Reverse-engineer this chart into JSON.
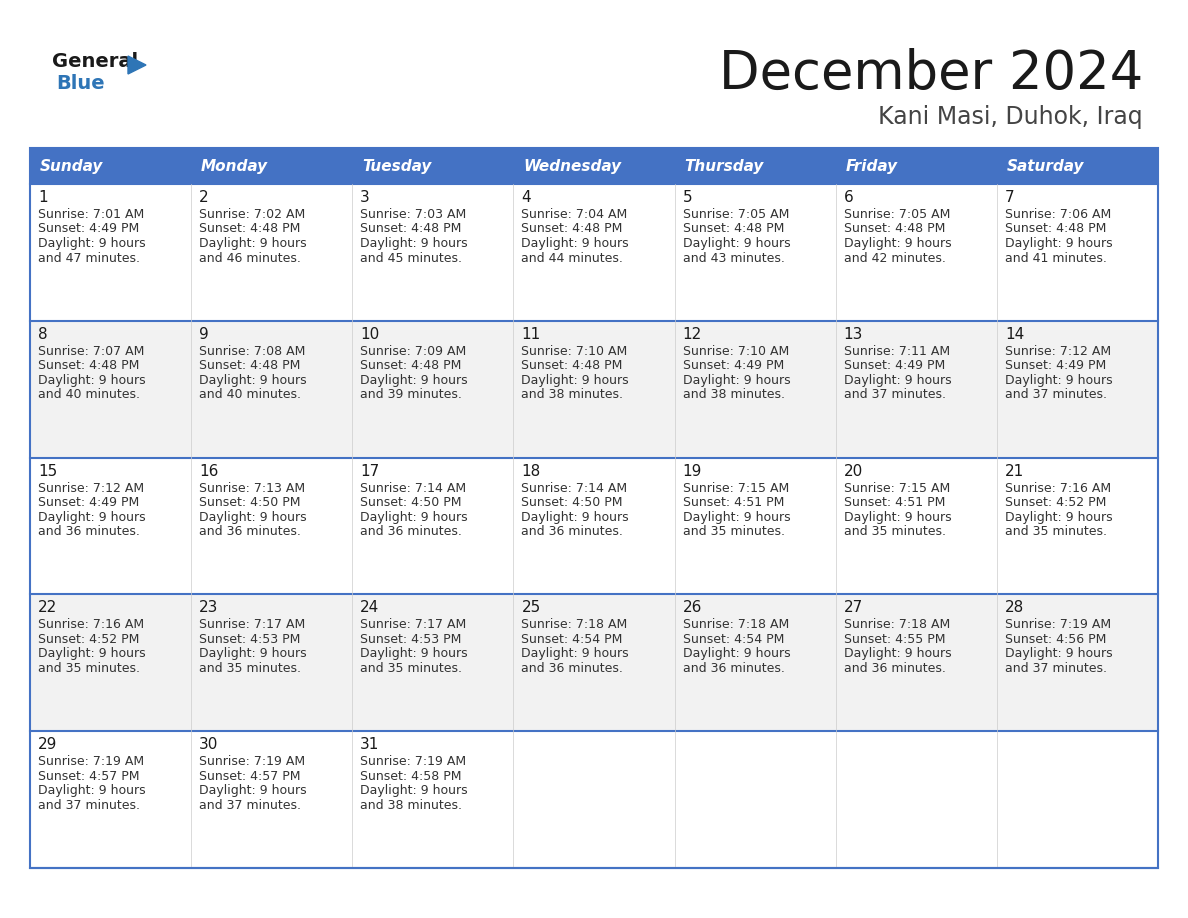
{
  "title": "December 2024",
  "subtitle": "Kani Masi, Duhok, Iraq",
  "header_bg": "#4472C4",
  "header_text_color": "#FFFFFF",
  "day_names": [
    "Sunday",
    "Monday",
    "Tuesday",
    "Wednesday",
    "Thursday",
    "Friday",
    "Saturday"
  ],
  "cell_bg_even": "#FFFFFF",
  "cell_bg_odd": "#F2F2F2",
  "border_color": "#4472C4",
  "row_line_color": "#4472C4",
  "days": [
    {
      "day": 1,
      "col": 0,
      "row": 0,
      "sunrise": "7:01 AM",
      "sunset": "4:49 PM",
      "daylight": "9 hours",
      "daylight2": "and 47 minutes."
    },
    {
      "day": 2,
      "col": 1,
      "row": 0,
      "sunrise": "7:02 AM",
      "sunset": "4:48 PM",
      "daylight": "9 hours",
      "daylight2": "and 46 minutes."
    },
    {
      "day": 3,
      "col": 2,
      "row": 0,
      "sunrise": "7:03 AM",
      "sunset": "4:48 PM",
      "daylight": "9 hours",
      "daylight2": "and 45 minutes."
    },
    {
      "day": 4,
      "col": 3,
      "row": 0,
      "sunrise": "7:04 AM",
      "sunset": "4:48 PM",
      "daylight": "9 hours",
      "daylight2": "and 44 minutes."
    },
    {
      "day": 5,
      "col": 4,
      "row": 0,
      "sunrise": "7:05 AM",
      "sunset": "4:48 PM",
      "daylight": "9 hours",
      "daylight2": "and 43 minutes."
    },
    {
      "day": 6,
      "col": 5,
      "row": 0,
      "sunrise": "7:05 AM",
      "sunset": "4:48 PM",
      "daylight": "9 hours",
      "daylight2": "and 42 minutes."
    },
    {
      "day": 7,
      "col": 6,
      "row": 0,
      "sunrise": "7:06 AM",
      "sunset": "4:48 PM",
      "daylight": "9 hours",
      "daylight2": "and 41 minutes."
    },
    {
      "day": 8,
      "col": 0,
      "row": 1,
      "sunrise": "7:07 AM",
      "sunset": "4:48 PM",
      "daylight": "9 hours",
      "daylight2": "and 40 minutes."
    },
    {
      "day": 9,
      "col": 1,
      "row": 1,
      "sunrise": "7:08 AM",
      "sunset": "4:48 PM",
      "daylight": "9 hours",
      "daylight2": "and 40 minutes."
    },
    {
      "day": 10,
      "col": 2,
      "row": 1,
      "sunrise": "7:09 AM",
      "sunset": "4:48 PM",
      "daylight": "9 hours",
      "daylight2": "and 39 minutes."
    },
    {
      "day": 11,
      "col": 3,
      "row": 1,
      "sunrise": "7:10 AM",
      "sunset": "4:48 PM",
      "daylight": "9 hours",
      "daylight2": "and 38 minutes."
    },
    {
      "day": 12,
      "col": 4,
      "row": 1,
      "sunrise": "7:10 AM",
      "sunset": "4:49 PM",
      "daylight": "9 hours",
      "daylight2": "and 38 minutes."
    },
    {
      "day": 13,
      "col": 5,
      "row": 1,
      "sunrise": "7:11 AM",
      "sunset": "4:49 PM",
      "daylight": "9 hours",
      "daylight2": "and 37 minutes."
    },
    {
      "day": 14,
      "col": 6,
      "row": 1,
      "sunrise": "7:12 AM",
      "sunset": "4:49 PM",
      "daylight": "9 hours",
      "daylight2": "and 37 minutes."
    },
    {
      "day": 15,
      "col": 0,
      "row": 2,
      "sunrise": "7:12 AM",
      "sunset": "4:49 PM",
      "daylight": "9 hours",
      "daylight2": "and 36 minutes."
    },
    {
      "day": 16,
      "col": 1,
      "row": 2,
      "sunrise": "7:13 AM",
      "sunset": "4:50 PM",
      "daylight": "9 hours",
      "daylight2": "and 36 minutes."
    },
    {
      "day": 17,
      "col": 2,
      "row": 2,
      "sunrise": "7:14 AM",
      "sunset": "4:50 PM",
      "daylight": "9 hours",
      "daylight2": "and 36 minutes."
    },
    {
      "day": 18,
      "col": 3,
      "row": 2,
      "sunrise": "7:14 AM",
      "sunset": "4:50 PM",
      "daylight": "9 hours",
      "daylight2": "and 36 minutes."
    },
    {
      "day": 19,
      "col": 4,
      "row": 2,
      "sunrise": "7:15 AM",
      "sunset": "4:51 PM",
      "daylight": "9 hours",
      "daylight2": "and 35 minutes."
    },
    {
      "day": 20,
      "col": 5,
      "row": 2,
      "sunrise": "7:15 AM",
      "sunset": "4:51 PM",
      "daylight": "9 hours",
      "daylight2": "and 35 minutes."
    },
    {
      "day": 21,
      "col": 6,
      "row": 2,
      "sunrise": "7:16 AM",
      "sunset": "4:52 PM",
      "daylight": "9 hours",
      "daylight2": "and 35 minutes."
    },
    {
      "day": 22,
      "col": 0,
      "row": 3,
      "sunrise": "7:16 AM",
      "sunset": "4:52 PM",
      "daylight": "9 hours",
      "daylight2": "and 35 minutes."
    },
    {
      "day": 23,
      "col": 1,
      "row": 3,
      "sunrise": "7:17 AM",
      "sunset": "4:53 PM",
      "daylight": "9 hours",
      "daylight2": "and 35 minutes."
    },
    {
      "day": 24,
      "col": 2,
      "row": 3,
      "sunrise": "7:17 AM",
      "sunset": "4:53 PM",
      "daylight": "9 hours",
      "daylight2": "and 35 minutes."
    },
    {
      "day": 25,
      "col": 3,
      "row": 3,
      "sunrise": "7:18 AM",
      "sunset": "4:54 PM",
      "daylight": "9 hours",
      "daylight2": "and 36 minutes."
    },
    {
      "day": 26,
      "col": 4,
      "row": 3,
      "sunrise": "7:18 AM",
      "sunset": "4:54 PM",
      "daylight": "9 hours",
      "daylight2": "and 36 minutes."
    },
    {
      "day": 27,
      "col": 5,
      "row": 3,
      "sunrise": "7:18 AM",
      "sunset": "4:55 PM",
      "daylight": "9 hours",
      "daylight2": "and 36 minutes."
    },
    {
      "day": 28,
      "col": 6,
      "row": 3,
      "sunrise": "7:19 AM",
      "sunset": "4:56 PM",
      "daylight": "9 hours",
      "daylight2": "and 37 minutes."
    },
    {
      "day": 29,
      "col": 0,
      "row": 4,
      "sunrise": "7:19 AM",
      "sunset": "4:57 PM",
      "daylight": "9 hours",
      "daylight2": "and 37 minutes."
    },
    {
      "day": 30,
      "col": 1,
      "row": 4,
      "sunrise": "7:19 AM",
      "sunset": "4:57 PM",
      "daylight": "9 hours",
      "daylight2": "and 37 minutes."
    },
    {
      "day": 31,
      "col": 2,
      "row": 4,
      "sunrise": "7:19 AM",
      "sunset": "4:58 PM",
      "daylight": "9 hours",
      "daylight2": "and 38 minutes."
    }
  ]
}
